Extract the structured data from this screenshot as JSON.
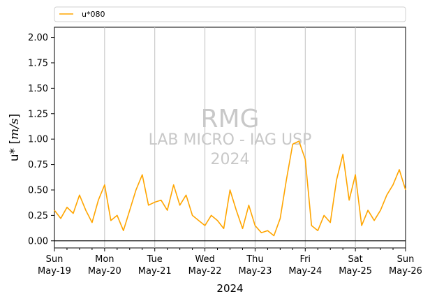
{
  "chart_data": {
    "type": "line",
    "xlabel": "2024",
    "ylabel": "u* [m/s]",
    "ylabel_parts": {
      "base": "u* [",
      "italic": "m/s",
      "end": "]"
    },
    "x_range": [
      "2024-05-19 00:00",
      "2024-05-26 00:00"
    ],
    "ylim": [
      -0.07,
      2.1
    ],
    "yticks": [
      "0.00",
      "0.25",
      "0.50",
      "0.75",
      "1.00",
      "1.25",
      "1.50",
      "1.75",
      "2.00"
    ],
    "ytick_values": [
      0,
      0.25,
      0.5,
      0.75,
      1.0,
      1.25,
      1.5,
      1.75,
      2.0
    ],
    "xticks": [
      {
        "day": "Sun",
        "date": "May-19"
      },
      {
        "day": "Mon",
        "date": "May-20"
      },
      {
        "day": "Tue",
        "date": "May-21"
      },
      {
        "day": "Wed",
        "date": "May-22"
      },
      {
        "day": "Thu",
        "date": "May-23"
      },
      {
        "day": "Fri",
        "date": "May-24"
      },
      {
        "day": "Sat",
        "date": "May-25"
      },
      {
        "day": "Sun",
        "date": "May-26"
      }
    ],
    "grid": "vertical lines at day ticks",
    "horizontal_reference_line": 0,
    "legend_placement": "above plot, left",
    "watermark": {
      "line1": "RMG",
      "line2": "LAB MICRO - IAG USP",
      "line3": "2024"
    },
    "series": [
      {
        "name": "u*080",
        "color": "#FFA500",
        "x": [
          "2024-05-19 00:00",
          "2024-05-19 03:00",
          "2024-05-19 06:00",
          "2024-05-19 09:00",
          "2024-05-19 12:00",
          "2024-05-19 15:00",
          "2024-05-19 18:00",
          "2024-05-19 21:00",
          "2024-05-20 00:00",
          "2024-05-20 03:00",
          "2024-05-20 06:00",
          "2024-05-20 09:00",
          "2024-05-20 12:00",
          "2024-05-20 15:00",
          "2024-05-20 18:00",
          "2024-05-20 21:00",
          "2024-05-21 00:00",
          "2024-05-21 03:00",
          "2024-05-21 06:00",
          "2024-05-21 09:00",
          "2024-05-21 12:00",
          "2024-05-21 15:00",
          "2024-05-21 18:00",
          "2024-05-21 21:00",
          "2024-05-22 00:00",
          "2024-05-22 03:00",
          "2024-05-22 06:00",
          "2024-05-22 09:00",
          "2024-05-22 12:00",
          "2024-05-22 15:00",
          "2024-05-22 18:00",
          "2024-05-22 21:00",
          "2024-05-23 00:00",
          "2024-05-23 03:00",
          "2024-05-23 06:00",
          "2024-05-23 09:00",
          "2024-05-23 12:00",
          "2024-05-23 15:00",
          "2024-05-23 18:00",
          "2024-05-23 21:00",
          "2024-05-24 00:00",
          "2024-05-24 03:00",
          "2024-05-24 06:00",
          "2024-05-24 09:00",
          "2024-05-24 12:00",
          "2024-05-24 15:00",
          "2024-05-24 18:00",
          "2024-05-24 21:00",
          "2024-05-25 00:00",
          "2024-05-25 03:00",
          "2024-05-25 06:00",
          "2024-05-25 09:00",
          "2024-05-25 12:00",
          "2024-05-25 15:00",
          "2024-05-25 18:00",
          "2024-05-25 21:00",
          "2024-05-26 00:00"
        ],
        "values": [
          0.3,
          0.22,
          0.33,
          0.27,
          0.45,
          0.3,
          0.18,
          0.4,
          0.55,
          0.2,
          0.25,
          0.1,
          0.3,
          0.5,
          0.65,
          0.35,
          0.38,
          0.4,
          0.3,
          0.55,
          0.35,
          0.45,
          0.25,
          0.2,
          0.15,
          0.25,
          0.2,
          0.12,
          0.5,
          0.3,
          0.12,
          0.35,
          0.15,
          0.08,
          0.1,
          0.05,
          0.22,
          0.6,
          0.95,
          0.98,
          0.8,
          0.15,
          0.1,
          0.25,
          0.18,
          0.6,
          0.85,
          0.4,
          0.65,
          0.15,
          0.3,
          0.2,
          0.3,
          0.45,
          0.55,
          0.7,
          0.5
        ]
      }
    ]
  }
}
